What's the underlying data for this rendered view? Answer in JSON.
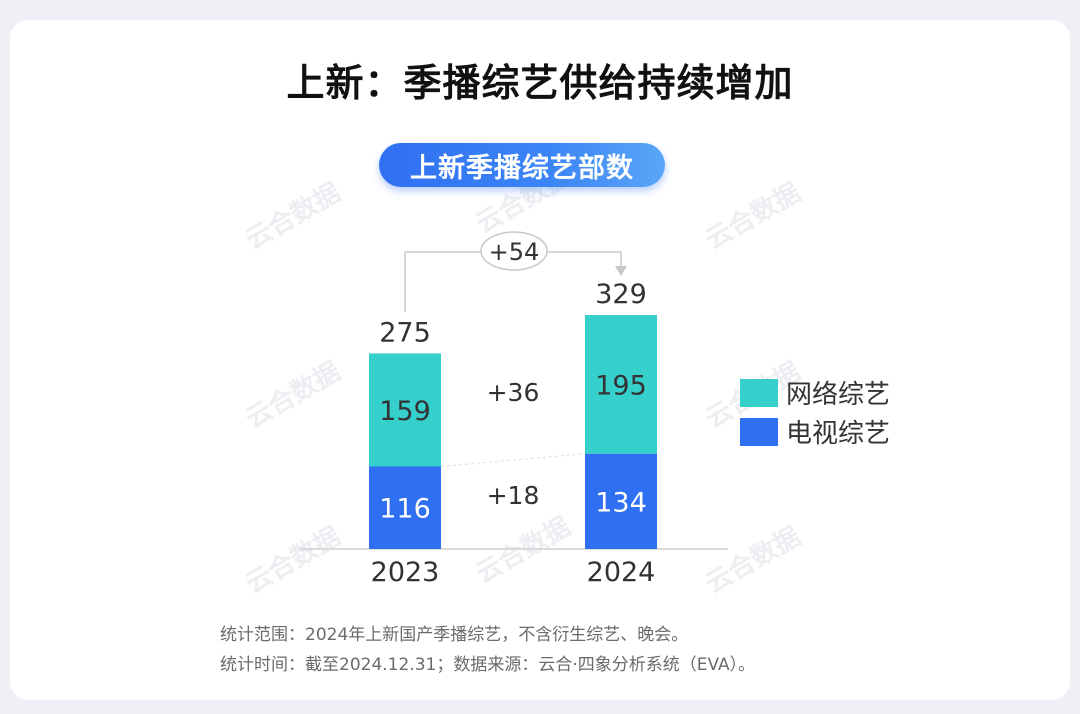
{
  "title": "上新：季播综艺供给持续增加",
  "subtitle": "上新季播综艺部数",
  "watermark": "云合数据",
  "colors": {
    "network": "#35cfcc",
    "tv": "#2f6ff2",
    "text": "#333333"
  },
  "chart_data": {
    "type": "bar",
    "stacked": true,
    "categories": [
      "2023",
      "2024"
    ],
    "series": [
      {
        "name": "电视综艺",
        "values": [
          116,
          134
        ]
      },
      {
        "name": "网络综艺",
        "values": [
          159,
          195
        ]
      }
    ],
    "totals": [
      275,
      329
    ],
    "annotations": {
      "total_change": "+54",
      "network_change": "+36",
      "tv_change": "+18"
    },
    "legend": "right",
    "grid": false,
    "ylim": [
      0,
      329
    ]
  },
  "notes": [
    "统计范围：2024年上新国产季播综艺，不含衍生综艺、晚会。",
    "统计时间：截至2024.12.31；数据来源：云合·四象分析系统（EVA）。"
  ]
}
